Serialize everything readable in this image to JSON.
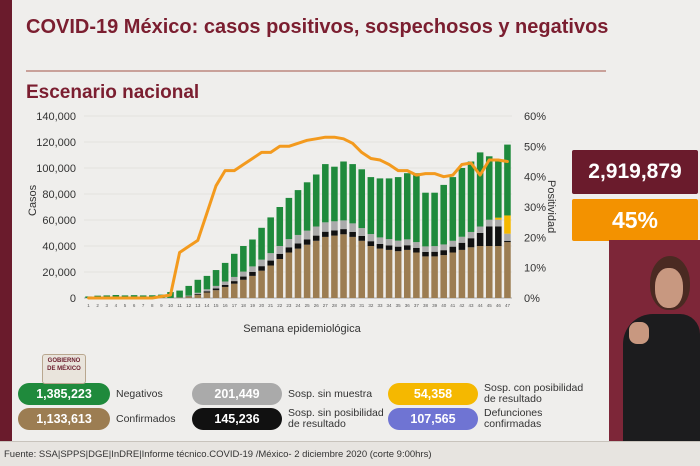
{
  "header": {
    "title": "COVID-19 México: casos positivos, sospechosos y negativos",
    "subtitle": "Escenario nacional"
  },
  "summary": {
    "total": "2,919,879",
    "positivity": "45%"
  },
  "logo_text": "GOBIERNO DE MÉXICO",
  "legend": {
    "negativos": {
      "value": "1,385,223",
      "label": "Negativos",
      "color": "#1f8a3c"
    },
    "sin_muestra": {
      "value": "201,449",
      "label": "Sosp. sin muestra",
      "color": "#aaaaaa"
    },
    "con_posibilidad": {
      "value": "54,358",
      "label": "Sosp. con posibilidad de resultado",
      "color": "#f5b800"
    },
    "confirmados": {
      "value": "1,133,613",
      "label": "Confirmados",
      "color": "#9c7d52"
    },
    "sin_posibilidad": {
      "value": "145,236",
      "label": "Sosp. sin posibilidad de resultado",
      "color": "#111111"
    },
    "defunciones": {
      "value": "107,565",
      "label": "Defunciones confirmadas",
      "color": "#6f74d3"
    }
  },
  "source": "Fuente: SSA|SPPS|DGE|InDRE|Informe técnico.COVID-19 /México- 2 diciembre 2020 (corte 9:00hrs)",
  "chart_data": {
    "type": "bar",
    "stacked": true,
    "xlabel": "Semana epidemiológica",
    "ylabel": "Casos",
    "y2label": "Positividad",
    "ylim": [
      0,
      140000
    ],
    "y2lim": [
      0,
      60
    ],
    "yticks": [
      "0",
      "20,000",
      "40,000",
      "60,000",
      "80,000",
      "100,000",
      "120,000",
      "140,000"
    ],
    "y2ticks": [
      "0%",
      "10%",
      "20%",
      "30%",
      "40%",
      "50%",
      "60%"
    ],
    "categories": [
      "1",
      "2",
      "3",
      "4",
      "5",
      "6",
      "7",
      "8",
      "9",
      "10",
      "11",
      "12",
      "13",
      "14",
      "15",
      "16",
      "17",
      "18",
      "19",
      "20",
      "21",
      "22",
      "23",
      "24",
      "25",
      "26",
      "27",
      "28",
      "29",
      "30",
      "31",
      "32",
      "33",
      "34",
      "35",
      "36",
      "37",
      "38",
      "39",
      "40",
      "41",
      "42",
      "43",
      "44",
      "45",
      "46",
      "47"
    ],
    "series": [
      {
        "name": "Confirmados",
        "color": "#9c7d52",
        "values": [
          0,
          0,
          0,
          0,
          0,
          0,
          0,
          0,
          0,
          50,
          300,
          1100,
          2500,
          4200,
          6000,
          8500,
          11000,
          14000,
          17000,
          21000,
          25000,
          30000,
          35000,
          38000,
          41000,
          44000,
          47000,
          48000,
          49000,
          47000,
          44000,
          40000,
          38000,
          37000,
          36000,
          37000,
          35000,
          32000,
          32000,
          33000,
          35000,
          37000,
          39000,
          40000,
          40000,
          40000,
          43000
        ]
      },
      {
        "name": "Sosp. sin posibilidad de resultado",
        "color": "#111111",
        "values": [
          0,
          0,
          0,
          0,
          0,
          0,
          0,
          0,
          0,
          0,
          100,
          300,
          700,
          1000,
          1300,
          1600,
          2000,
          2500,
          3000,
          3500,
          3800,
          4000,
          4000,
          4000,
          4000,
          4000,
          4000,
          4000,
          4000,
          3900,
          3800,
          3700,
          3600,
          3500,
          3500,
          3600,
          3600,
          3500,
          3600,
          3800,
          4500,
          5500,
          7000,
          10000,
          15000,
          15000,
          1000
        ]
      },
      {
        "name": "Sosp. sin muestra",
        "color": "#aaaaaa",
        "values": [
          0,
          0,
          0,
          0,
          0,
          0,
          0,
          0,
          0,
          20,
          100,
          400,
          800,
          1500,
          2000,
          2600,
          3200,
          3800,
          4300,
          5000,
          5700,
          6000,
          6300,
          6500,
          6800,
          7000,
          7200,
          7000,
          6700,
          6500,
          6000,
          5500,
          5000,
          4800,
          4600,
          4500,
          4400,
          4200,
          4300,
          4400,
          4500,
          4600,
          4800,
          5000,
          5200,
          5300,
          5500
        ]
      },
      {
        "name": "Sosp. con posibilidad de resultado",
        "color": "#f5b800",
        "values": [
          0,
          0,
          0,
          0,
          0,
          0,
          0,
          0,
          0,
          0,
          0,
          0,
          0,
          0,
          0,
          0,
          0,
          0,
          0,
          0,
          0,
          0,
          0,
          0,
          0,
          0,
          0,
          0,
          0,
          0,
          0,
          0,
          0,
          0,
          0,
          0,
          0,
          0,
          0,
          0,
          0,
          0,
          0,
          0,
          0,
          1500,
          14000
        ]
      },
      {
        "name": "Negativos",
        "color": "#1f8a3c",
        "values": [
          1200,
          1800,
          2000,
          2300,
          2000,
          2200,
          2000,
          2100,
          2600,
          4500,
          5200,
          7500,
          10000,
          10300,
          12200,
          14300,
          17800,
          19700,
          20700,
          24500,
          27500,
          30000,
          31700,
          34500,
          37200,
          40000,
          44800,
          42000,
          45300,
          45600,
          45200,
          43800,
          45400,
          46700,
          48900,
          50900,
          53000,
          41300,
          41100,
          45800,
          49000,
          52900,
          54200,
          57000,
          48800,
          44700,
          54500
        ]
      }
    ],
    "line": {
      "name": "Positividad",
      "color": "#f39a1e",
      "values": [
        0,
        0,
        0,
        0,
        0,
        0,
        0,
        0,
        0.5,
        1,
        15,
        17,
        19,
        28,
        37,
        42,
        42,
        44,
        46,
        48,
        48,
        50,
        50,
        51,
        52,
        52.5,
        53,
        53,
        52.5,
        51,
        48,
        46,
        45.5,
        44,
        42,
        42,
        40.5,
        41,
        41,
        40,
        40.5,
        44,
        44.5,
        40.5,
        45.5,
        45.5,
        45
      ]
    }
  }
}
